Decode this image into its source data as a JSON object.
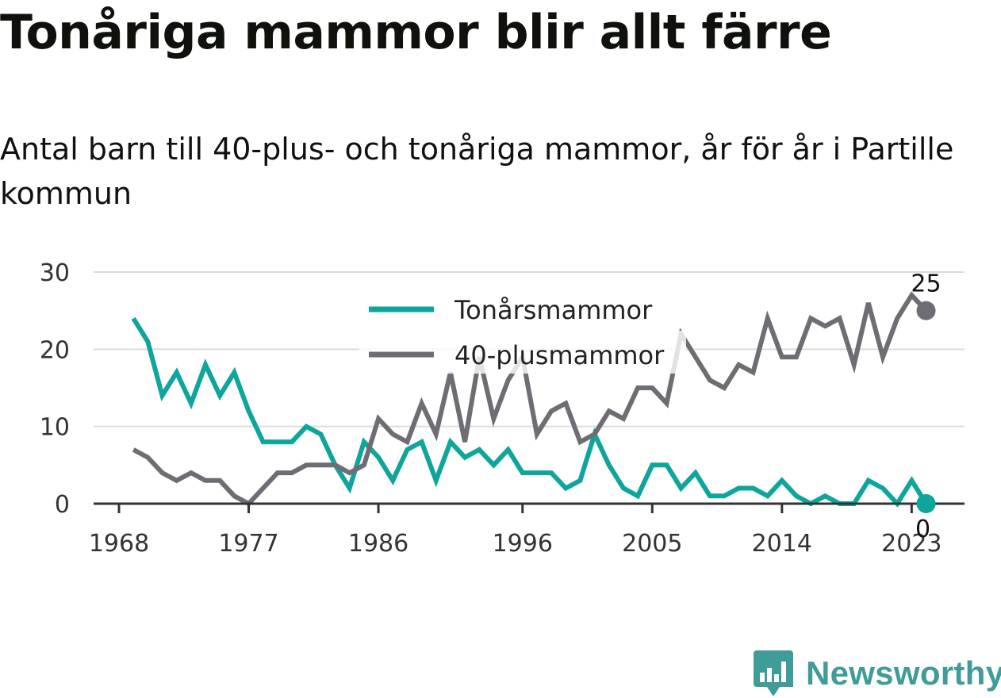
{
  "chart_data": {
    "type": "line",
    "title": "Tonåriga mammor blir allt färre",
    "subtitle": "Antal barn till 40-plus- och tonåriga mammor, år för år i Partille kommun",
    "x": [
      1969,
      1970,
      1971,
      1972,
      1973,
      1974,
      1975,
      1976,
      1977,
      1978,
      1979,
      1980,
      1981,
      1982,
      1983,
      1984,
      1985,
      1986,
      1987,
      1988,
      1989,
      1990,
      1991,
      1992,
      1993,
      1994,
      1995,
      1996,
      1997,
      1998,
      1999,
      2000,
      2001,
      2002,
      2003,
      2004,
      2005,
      2006,
      2007,
      2008,
      2009,
      2010,
      2011,
      2012,
      2013,
      2014,
      2015,
      2016,
      2017,
      2018,
      2019,
      2020,
      2021,
      2022,
      2023,
      2024
    ],
    "series": [
      {
        "name": "Tonårsmammor",
        "color": "#0ea59c",
        "values": [
          24,
          21,
          14,
          17,
          13,
          18,
          14,
          17,
          12,
          8,
          8,
          8,
          10,
          9,
          5,
          2,
          8,
          6,
          3,
          7,
          8,
          3,
          8,
          6,
          7,
          5,
          7,
          4,
          4,
          4,
          2,
          3,
          9,
          5,
          2,
          1,
          5,
          5,
          2,
          4,
          1,
          1,
          2,
          2,
          1,
          3,
          1,
          0,
          1,
          0,
          0,
          3,
          2,
          0,
          3,
          0
        ]
      },
      {
        "name": "40-plusmammor",
        "color": "#6e6d73",
        "values": [
          7,
          6,
          4,
          3,
          4,
          3,
          3,
          1,
          0,
          2,
          4,
          4,
          5,
          5,
          5,
          4,
          5,
          11,
          9,
          8,
          13,
          9,
          17,
          8,
          19,
          11,
          16,
          19,
          9,
          12,
          13,
          8,
          9,
          12,
          11,
          15,
          15,
          13,
          22,
          19,
          16,
          15,
          18,
          17,
          24,
          19,
          19,
          24,
          23,
          24,
          18,
          26,
          19,
          24,
          27,
          25
        ]
      }
    ],
    "xticks": [
      "1968",
      "1977",
      "1986",
      "1996",
      "2005",
      "2014",
      "2023"
    ],
    "yticks": [
      "0",
      "10",
      "20",
      "30"
    ],
    "ylim": [
      0,
      30
    ],
    "xlim": [
      1968,
      2024
    ],
    "grid": true,
    "legend": "top-center",
    "end_labels": [
      "25",
      "0"
    ],
    "source_logo": "Newsworthy"
  }
}
